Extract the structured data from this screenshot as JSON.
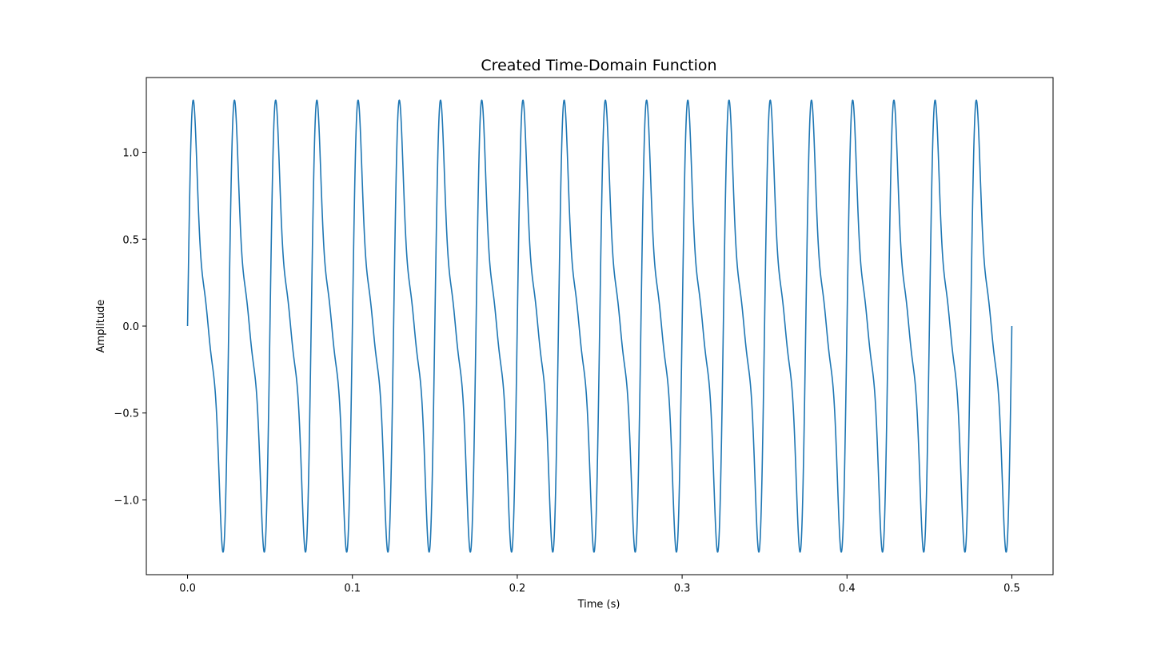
{
  "chart_data": {
    "type": "line",
    "title": "Created Time-Domain Function",
    "xlabel": "Time (s)",
    "ylabel": "Amplitude",
    "xlim": [
      -0.025,
      0.525
    ],
    "ylim": [
      -1.43,
      1.43
    ],
    "x_ticks": [
      0.0,
      0.1,
      0.2,
      0.3,
      0.4,
      0.5
    ],
    "x_tick_labels": [
      "0.0",
      "0.1",
      "0.2",
      "0.3",
      "0.4",
      "0.5"
    ],
    "y_ticks": [
      -1.0,
      -0.5,
      0.0,
      0.5,
      1.0
    ],
    "y_tick_labels": [
      "−1.0",
      "−0.5",
      "0.0",
      "0.5",
      "1.0"
    ],
    "grid": false,
    "legend": "none",
    "line_color": "#1f77b4",
    "series": [
      {
        "function": "sin(2*pi*40*t) + 0.5*sin(2*pi*80*t) + ... (periodic, period 0.025 s)",
        "x_range": [
          0.0,
          0.5
        ],
        "period": 0.025,
        "peak_amplitude": 1.3,
        "values_one_period": [
          {
            "x": 0.0,
            "y": 0.0
          },
          {
            "x": 0.0025,
            "y": 1.08
          },
          {
            "x": 0.0045,
            "y": 1.3
          },
          {
            "x": 0.0075,
            "y": 0.55
          },
          {
            "x": 0.0105,
            "y": 0.05
          },
          {
            "x": 0.0125,
            "y": 0.0
          },
          {
            "x": 0.0145,
            "y": -0.05
          },
          {
            "x": 0.0175,
            "y": -0.55
          },
          {
            "x": 0.0205,
            "y": -1.3
          },
          {
            "x": 0.0225,
            "y": -1.08
          },
          {
            "x": 0.025,
            "y": 0.0
          }
        ]
      }
    ]
  }
}
